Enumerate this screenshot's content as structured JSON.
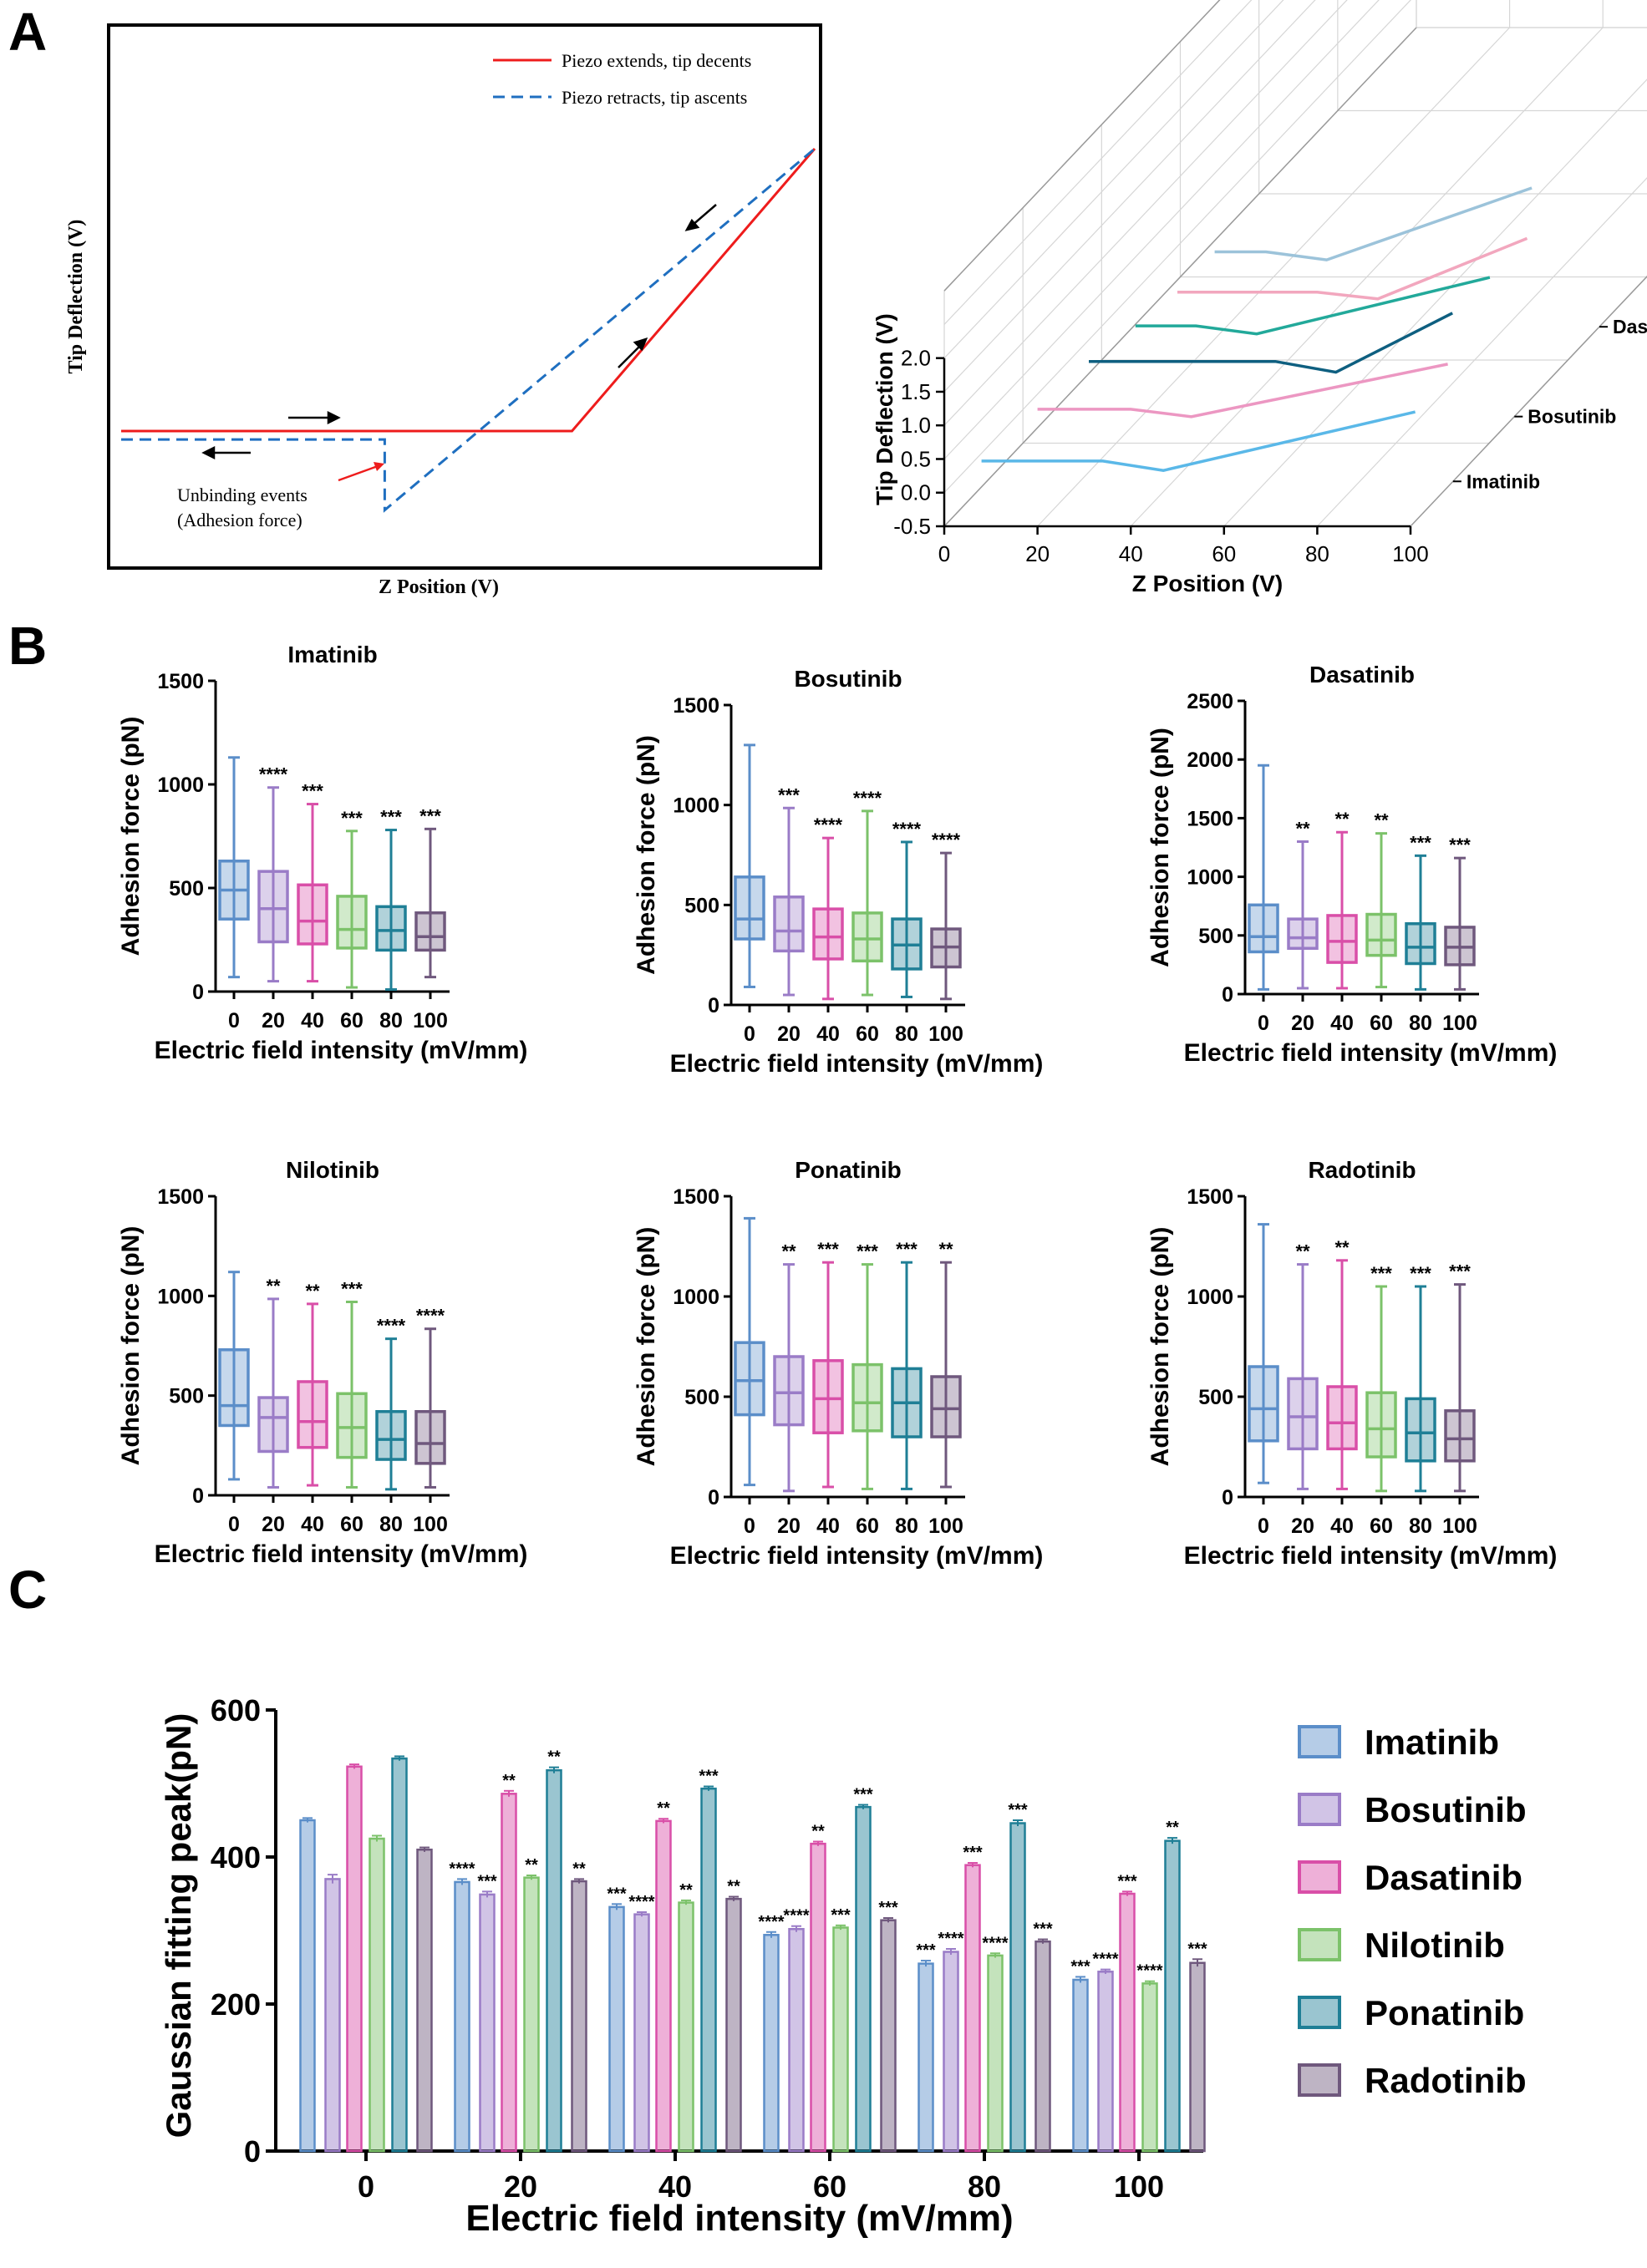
{
  "panels": {
    "a": "A",
    "b": "B",
    "c": "C"
  },
  "colors": {
    "imatinib": "#5b8ec9",
    "bosutinib": "#9a7cc7",
    "dasatinib": "#d94fa8",
    "nilotinib": "#7cc26a",
    "ponatinib": "#1f7f96",
    "radotinib": "#6f587d",
    "extend": "#ee1c1c",
    "retract": "#1f6fc0"
  },
  "chart_data": [
    {
      "id": "a-left",
      "type": "line",
      "xlabel": "Z Position (V)",
      "ylabel": "Tip Deflection (V)",
      "legend": [
        "Piezo extends, tip decents",
        "Piezo retracts, tip ascents"
      ],
      "annotation": [
        "Unbinding events",
        "(Adhesion force)"
      ],
      "series": [
        {
          "name": "Piezo extends, tip decents",
          "x": [
            0,
            0.5,
            0.65,
            1.0
          ],
          "y": [
            0,
            0,
            0,
            1.0
          ]
        },
        {
          "name": "Piezo retracts, tip ascents",
          "x": [
            0,
            0.38,
            0.38,
            1.0
          ],
          "y": [
            -0.03,
            -0.03,
            -0.28,
            1.0
          ]
        }
      ]
    },
    {
      "id": "a-right",
      "type": "line",
      "xlabel": "Z Position (V)",
      "ylabel": "Tip Deflection (V)",
      "xticks": [
        "0",
        "20",
        "40",
        "60",
        "80",
        "100"
      ],
      "yticks": [
        "-0.5",
        "0.0",
        "0.5",
        "1.0",
        "1.5",
        "2.0"
      ],
      "series": [
        "Imatinib",
        "Bosutinib",
        "Dasatinib",
        "Nilotinib",
        "Ponatinib",
        "Radotinib"
      ]
    },
    {
      "id": "b",
      "type": "box",
      "xlabel": "Electric field intensity (mV/mm)",
      "ylabel": "Adhesion force (pN)",
      "categories": [
        "0",
        "20",
        "40",
        "60",
        "80",
        "100"
      ],
      "plots": [
        {
          "title": "Imatinib",
          "ylim": [
            0,
            1500
          ],
          "yticks": [
            "0",
            "500",
            "1000",
            "1500"
          ],
          "boxes": [
            [
              70,
              350,
              490,
              630,
              1130
            ],
            [
              50,
              240,
              400,
              580,
              985
            ],
            [
              50,
              230,
              340,
              515,
              905
            ],
            [
              20,
              210,
              300,
              460,
              775
            ],
            [
              10,
              200,
              295,
              410,
              780
            ],
            [
              70,
              200,
              265,
              380,
              785
            ]
          ],
          "sig": [
            "",
            "****",
            "***",
            "***",
            "***",
            "***"
          ]
        },
        {
          "title": "Bosutinib",
          "ylim": [
            0,
            1500
          ],
          "yticks": [
            "0",
            "500",
            "1000",
            "1500"
          ],
          "boxes": [
            [
              90,
              330,
              430,
              640,
              1300
            ],
            [
              50,
              270,
              370,
              540,
              985
            ],
            [
              30,
              230,
              340,
              480,
              835
            ],
            [
              50,
              220,
              330,
              460,
              970
            ],
            [
              40,
              180,
              300,
              430,
              815
            ],
            [
              30,
              190,
              290,
              380,
              760
            ]
          ],
          "sig": [
            "",
            "***",
            "****",
            "****",
            "****",
            "****"
          ]
        },
        {
          "title": "Dasatinib",
          "ylim": [
            0,
            2500
          ],
          "yticks": [
            "0",
            "500",
            "1000",
            "1500",
            "2000",
            "2500"
          ],
          "boxes": [
            [
              40,
              360,
              490,
              760,
              1950
            ],
            [
              50,
              390,
              480,
              640,
              1300
            ],
            [
              50,
              270,
              450,
              670,
              1380
            ],
            [
              60,
              330,
              460,
              680,
              1370
            ],
            [
              40,
              260,
              400,
              600,
              1180
            ],
            [
              40,
              250,
              400,
              570,
              1160
            ]
          ],
          "sig": [
            "",
            "**",
            "**",
            "**",
            "***",
            "***"
          ]
        },
        {
          "title": "Nilotinib",
          "ylim": [
            0,
            1500
          ],
          "yticks": [
            "0",
            "500",
            "1000",
            "1500"
          ],
          "boxes": [
            [
              80,
              350,
              450,
              730,
              1120
            ],
            [
              40,
              220,
              390,
              490,
              985
            ],
            [
              50,
              240,
              370,
              570,
              960
            ],
            [
              40,
              190,
              340,
              510,
              970
            ],
            [
              30,
              180,
              280,
              420,
              785
            ],
            [
              40,
              160,
              260,
              420,
              835
            ]
          ],
          "sig": [
            "",
            "**",
            "**",
            "***",
            "****",
            "****"
          ]
        },
        {
          "title": "Ponatinib",
          "ylim": [
            0,
            1500
          ],
          "yticks": [
            "0",
            "500",
            "1000",
            "1500"
          ],
          "boxes": [
            [
              60,
              410,
              580,
              770,
              1390
            ],
            [
              30,
              360,
              520,
              700,
              1160
            ],
            [
              50,
              320,
              490,
              680,
              1170
            ],
            [
              40,
              330,
              470,
              660,
              1160
            ],
            [
              40,
              300,
              470,
              640,
              1170
            ],
            [
              50,
              300,
              440,
              600,
              1170
            ]
          ],
          "sig": [
            "",
            "**",
            "***",
            "***",
            "***",
            "**"
          ]
        },
        {
          "title": "Radotinib",
          "ylim": [
            0,
            1500
          ],
          "yticks": [
            "0",
            "500",
            "1000",
            "1500"
          ],
          "boxes": [
            [
              70,
              280,
              440,
              650,
              1360
            ],
            [
              40,
              240,
              400,
              590,
              1160
            ],
            [
              40,
              240,
              370,
              550,
              1180
            ],
            [
              30,
              200,
              340,
              520,
              1050
            ],
            [
              30,
              180,
              320,
              490,
              1050
            ],
            [
              30,
              180,
              290,
              430,
              1060
            ]
          ],
          "sig": [
            "",
            "**",
            "**",
            "***",
            "***",
            "***"
          ]
        }
      ]
    },
    {
      "id": "c",
      "type": "bar",
      "xlabel": "Electric field intensity (mV/mm)",
      "ylabel": "Gaussian fitting peak(pN)",
      "ylim": [
        0,
        600
      ],
      "yticks": [
        "0",
        "200",
        "400",
        "600"
      ],
      "categories": [
        "0",
        "20",
        "40",
        "60",
        "80",
        "100"
      ],
      "series": [
        {
          "name": "Imatinib",
          "values": [
            450,
            366,
            332,
            294,
            255,
            233
          ],
          "errors": [
            3,
            4,
            4,
            4,
            4,
            4
          ],
          "sig": [
            "",
            "****",
            "***",
            "****",
            "***",
            "***"
          ]
        },
        {
          "name": "Bosutinib",
          "values": [
            370,
            349,
            322,
            302,
            271,
            244
          ],
          "errors": [
            6,
            4,
            3,
            4,
            4,
            3
          ],
          "sig": [
            "",
            "***",
            "****",
            "****",
            "****",
            "****"
          ]
        },
        {
          "name": "Dasatinib",
          "values": [
            523,
            486,
            449,
            418,
            389,
            350
          ],
          "errors": [
            3,
            4,
            3,
            3,
            3,
            3
          ],
          "sig": [
            "",
            "**",
            "**",
            "**",
            "***",
            "***"
          ]
        },
        {
          "name": "Nilotinib",
          "values": [
            425,
            372,
            338,
            304,
            266,
            228
          ],
          "errors": [
            4,
            3,
            3,
            3,
            3,
            3
          ],
          "sig": [
            "",
            "**",
            "**",
            "***",
            "****",
            "****"
          ]
        },
        {
          "name": "Ponatinib",
          "values": [
            534,
            518,
            493,
            468,
            446,
            422
          ],
          "errors": [
            3,
            4,
            3,
            3,
            4,
            4
          ],
          "sig": [
            "",
            "**",
            "***",
            "***",
            "***",
            "**"
          ]
        },
        {
          "name": "Radotinib",
          "values": [
            410,
            367,
            343,
            314,
            285,
            256
          ],
          "errors": [
            3,
            3,
            3,
            3,
            3,
            5
          ],
          "sig": [
            "",
            "**",
            "**",
            "***",
            "***",
            "***"
          ]
        }
      ]
    }
  ]
}
